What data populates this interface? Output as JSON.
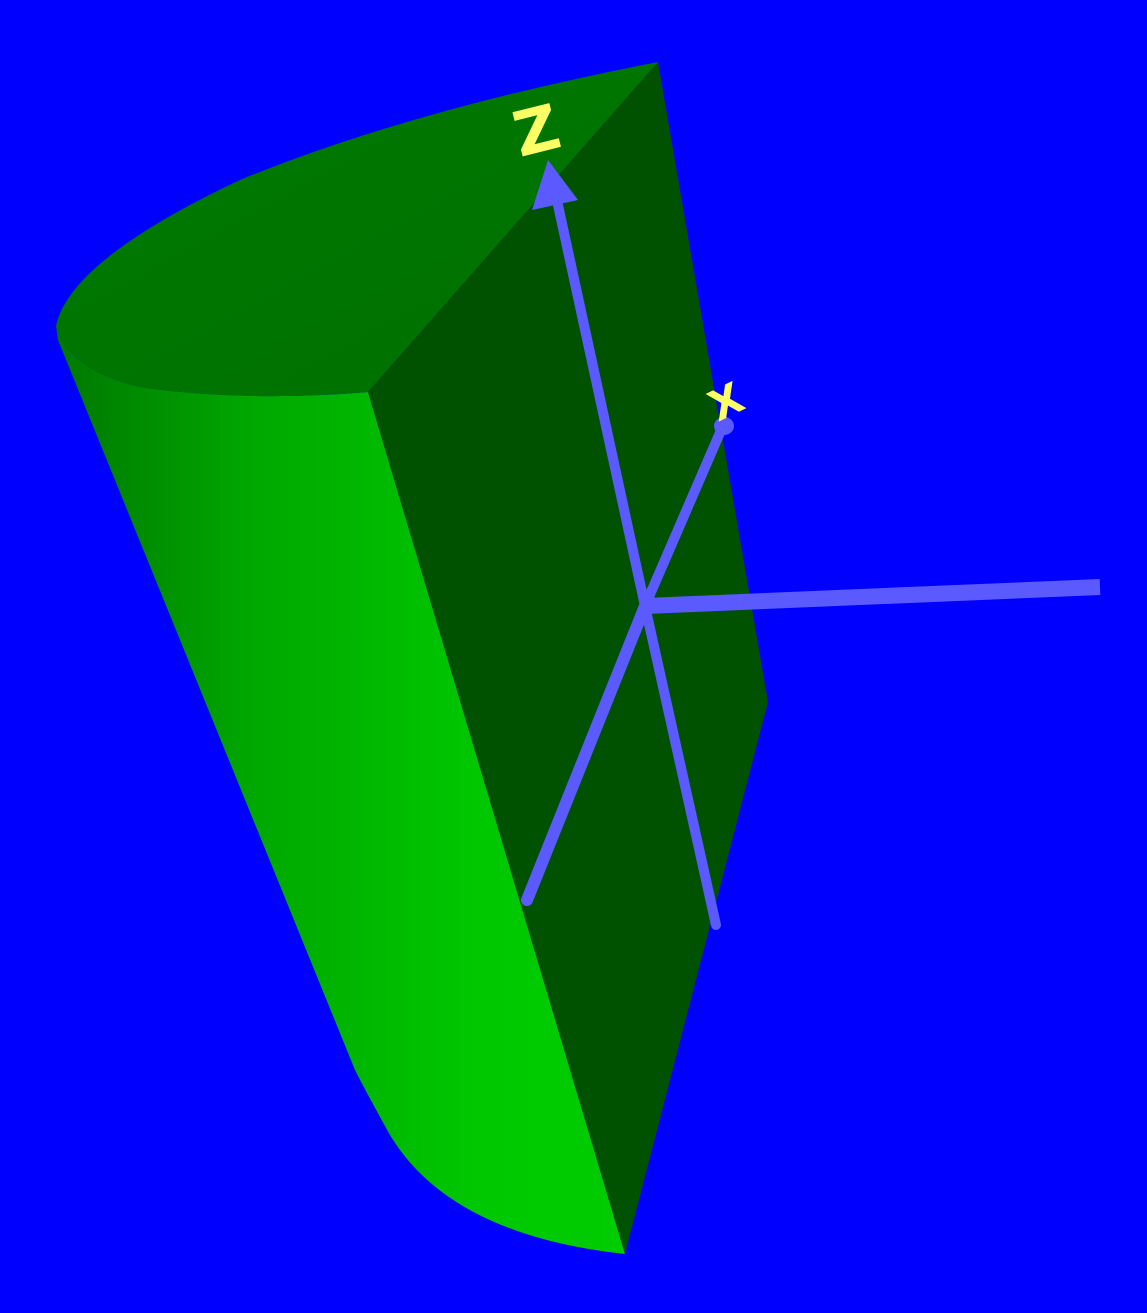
{
  "scene": {
    "background_color": "#0000ff",
    "colors": {
      "half_cylinder_top": "#007a00",
      "half_cylinder_flat_face": "#005200",
      "half_cylinder_curved_lit": "#00c800",
      "half_cylinder_curved_shade": "#007800",
      "axis": "#5a5aff",
      "axis_label": "#ffff66"
    },
    "axes": {
      "z_label": "Z",
      "x_label": "X"
    }
  }
}
